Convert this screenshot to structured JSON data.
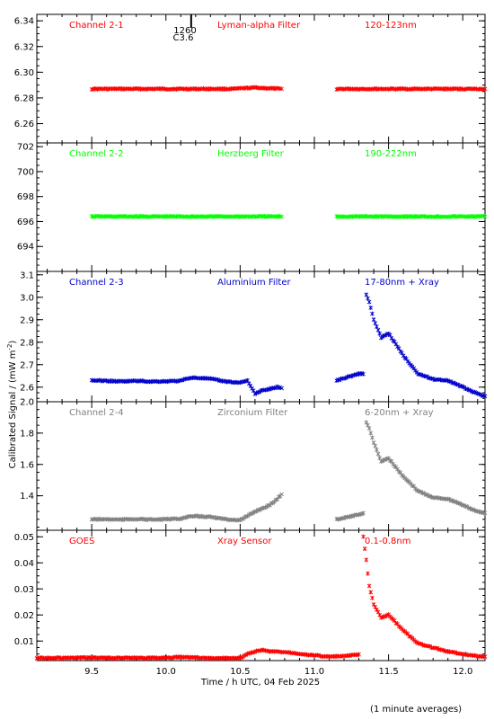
{
  "figure": {
    "ylabel": "Calibrated Signal / (mW m",
    "ylabel_sup": "-2",
    "ylabel_end": ")",
    "xlabel": "Time / h UTC, 04 Feb 2025",
    "footnote": "(1 minute averages)",
    "event": {
      "label_top": "1260",
      "label_bottom": "C3.6",
      "x": 10.17
    }
  },
  "chart_data": [
    {
      "type": "scatter",
      "name": "Channel 2-1",
      "filter": "Lyman-alpha Filter",
      "band": "120-123nm",
      "color": "#ff0000",
      "xlim": [
        9.13,
        12.15
      ],
      "ylim": [
        6.245,
        6.345
      ],
      "yticks": [
        6.26,
        6.28,
        6.3,
        6.32,
        6.34
      ],
      "ytick_labels": [
        "6.26",
        "6.28",
        "6.30",
        "6.32",
        "6.34"
      ],
      "segments": [
        {
          "x": [
            9.5,
            9.8,
            10.1,
            10.3,
            10.45,
            10.6,
            10.78
          ],
          "y": [
            6.287,
            6.287,
            6.287,
            6.287,
            6.287,
            6.288,
            6.287
          ]
        },
        {
          "x": [
            11.15,
            11.5,
            11.8,
            12.15
          ],
          "y": [
            6.287,
            6.287,
            6.287,
            6.287
          ]
        }
      ]
    },
    {
      "type": "scatter",
      "name": "Channel 2-2",
      "filter": "Herzberg Filter",
      "band": "190-222nm",
      "color": "#00ff00",
      "xlim": [
        9.13,
        12.15
      ],
      "ylim": [
        692.0,
        702.3
      ],
      "yticks": [
        694,
        696,
        698,
        700,
        702
      ],
      "ytick_labels": [
        "694",
        "696",
        "698",
        "700",
        "702"
      ],
      "segments": [
        {
          "x": [
            9.5,
            9.8,
            10.1,
            10.4,
            10.78
          ],
          "y": [
            696.4,
            696.4,
            696.4,
            696.4,
            696.4
          ]
        },
        {
          "x": [
            11.15,
            11.5,
            11.8,
            12.15
          ],
          "y": [
            696.4,
            696.4,
            696.4,
            696.4
          ]
        }
      ]
    },
    {
      "type": "scatter",
      "name": "Channel 2-3",
      "filter": "Aluminium Filter",
      "band": "17-80nm + Xray",
      "color": "#0000cc",
      "xlim": [
        9.13,
        12.15
      ],
      "ylim": [
        2.535,
        3.115
      ],
      "yticks": [
        2.6,
        2.7,
        2.8,
        2.9,
        3.0,
        3.1
      ],
      "ytick_labels": [
        "2.6",
        "2.7",
        "2.8",
        "2.9",
        "3.0",
        "3.1"
      ],
      "segments": [
        {
          "x": [
            9.5,
            9.6,
            9.7,
            9.8,
            9.9,
            10.0,
            10.1,
            10.15,
            10.2,
            10.3,
            10.4,
            10.5,
            10.55,
            10.6,
            10.65,
            10.7,
            10.75,
            10.78
          ],
          "y": [
            2.63,
            2.628,
            2.625,
            2.628,
            2.625,
            2.626,
            2.628,
            2.64,
            2.642,
            2.637,
            2.625,
            2.62,
            2.63,
            2.57,
            2.585,
            2.592,
            2.6,
            2.595
          ]
        },
        {
          "x": [
            11.15,
            11.2,
            11.25,
            11.3,
            11.33,
            11.35,
            11.37,
            11.4,
            11.45,
            11.5,
            11.55,
            11.6,
            11.7,
            11.8,
            11.9,
            12.0,
            12.1,
            12.15
          ],
          "y": [
            2.63,
            2.64,
            2.65,
            2.66,
            2.66,
            3.01,
            2.98,
            2.9,
            2.82,
            2.84,
            2.79,
            2.74,
            2.66,
            2.635,
            2.63,
            2.6,
            2.57,
            2.56
          ]
        }
      ]
    },
    {
      "type": "scatter",
      "name": "Channel 2-4",
      "filter": "Zirconium Filter",
      "band": "6-20nm + Xray",
      "color": "#808080",
      "xlim": [
        9.13,
        12.15
      ],
      "ylim": [
        1.18,
        2.0
      ],
      "yticks": [
        1.4,
        1.6,
        1.8,
        2.0
      ],
      "ytick_labels": [
        "1.4",
        "1.6",
        "1.8",
        "2.0"
      ],
      "segments": [
        {
          "x": [
            9.5,
            9.6,
            9.7,
            9.8,
            9.9,
            10.0,
            10.1,
            10.15,
            10.2,
            10.3,
            10.4,
            10.5,
            10.55,
            10.6,
            10.65,
            10.7,
            10.75,
            10.78
          ],
          "y": [
            1.25,
            1.25,
            1.248,
            1.252,
            1.248,
            1.25,
            1.255,
            1.265,
            1.27,
            1.265,
            1.25,
            1.245,
            1.27,
            1.3,
            1.32,
            1.34,
            1.38,
            1.41
          ]
        },
        {
          "x": [
            11.15,
            11.2,
            11.25,
            11.3,
            11.33,
            11.35,
            11.37,
            11.4,
            11.45,
            11.5,
            11.55,
            11.6,
            11.7,
            11.8,
            11.9,
            12.0,
            12.1,
            12.15
          ],
          "y": [
            1.25,
            1.26,
            1.27,
            1.28,
            1.29,
            1.87,
            1.83,
            1.74,
            1.62,
            1.64,
            1.58,
            1.52,
            1.43,
            1.39,
            1.38,
            1.34,
            1.3,
            1.29
          ]
        }
      ]
    },
    {
      "type": "scatter",
      "name": "GOES",
      "filter": "Xray Sensor",
      "band": "0.1-0.8nm",
      "color": "#ff0000",
      "xlim": [
        9.13,
        12.15
      ],
      "ylim": [
        0.0025,
        0.0525
      ],
      "yticks": [
        0.01,
        0.02,
        0.03,
        0.04,
        0.05
      ],
      "ytick_labels": [
        "0.01",
        "0.02",
        "0.03",
        "0.04",
        "0.05"
      ],
      "segments": [
        {
          "x": [
            9.13,
            9.3,
            9.5,
            9.7,
            9.9,
            10.1,
            10.2,
            10.3,
            10.5,
            10.55,
            10.6,
            10.65,
            10.7,
            10.8,
            10.9,
            11.0,
            11.1,
            11.2,
            11.3,
            11.33,
            11.35,
            11.37,
            11.4,
            11.45,
            11.5,
            11.55,
            11.6,
            11.7,
            11.8,
            11.9,
            12.0,
            12.1,
            12.15
          ],
          "y": [
            0.0035,
            0.0035,
            0.0036,
            0.0035,
            0.0035,
            0.0038,
            0.0037,
            0.0034,
            0.0035,
            0.005,
            0.006,
            0.0065,
            0.006,
            0.0058,
            0.0052,
            0.0045,
            0.004,
            0.0042,
            0.0048,
            0.05,
            0.041,
            0.031,
            0.024,
            0.019,
            0.02,
            0.017,
            0.014,
            0.009,
            0.0075,
            0.006,
            0.005,
            0.0042,
            0.004
          ]
        }
      ]
    }
  ]
}
